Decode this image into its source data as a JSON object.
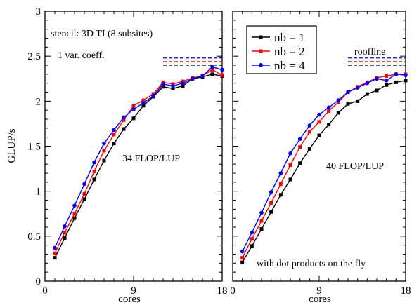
{
  "figure": {
    "ylabel": "GLUP/s",
    "xlabel": "cores",
    "legend": {
      "position": "top-left of right panel",
      "entries": [
        "nb = 1",
        "nb = 2",
        "nb = 4"
      ]
    },
    "colors": {
      "nb1": "#000000",
      "nb2": "#ff0000",
      "nb4": "#0000ff"
    }
  },
  "chart_data": [
    {
      "type": "line",
      "panel": "left",
      "xlabel": "cores",
      "ylabel": "GLUP/s",
      "xlim": [
        0,
        18
      ],
      "ylim": [
        0,
        3
      ],
      "xticks": [
        "0",
        "9",
        "18"
      ],
      "yticks": [
        "0",
        "0.5",
        "1",
        "1.5",
        "2",
        "2.5",
        "3"
      ],
      "annotations": [
        "stencil: 3D TI (8 subsites)",
        "1 var. coeff.",
        "34 FLOP/LUP"
      ],
      "x": [
        1,
        2,
        3,
        4,
        5,
        6,
        7,
        8,
        9,
        10,
        11,
        12,
        13,
        14,
        15,
        16,
        17,
        18
      ],
      "series": [
        {
          "name": "nb = 1",
          "color": "#000000",
          "marker": "square",
          "values": [
            0.26,
            0.48,
            0.7,
            0.91,
            1.13,
            1.34,
            1.53,
            1.69,
            1.81,
            1.95,
            2.05,
            2.16,
            2.14,
            2.17,
            2.25,
            2.27,
            2.3,
            2.28
          ]
        },
        {
          "name": "nb = 2",
          "color": "#ff0000",
          "marker": "square",
          "values": [
            0.31,
            0.54,
            0.75,
            0.97,
            1.22,
            1.45,
            1.63,
            1.79,
            1.95,
            2.01,
            2.08,
            2.21,
            2.19,
            2.22,
            2.26,
            2.28,
            2.35,
            2.29
          ]
        },
        {
          "name": "nb = 4",
          "color": "#0000ff",
          "marker": "circle",
          "values": [
            0.37,
            0.61,
            0.84,
            1.08,
            1.32,
            1.53,
            1.68,
            1.82,
            1.91,
            1.98,
            2.06,
            2.19,
            2.17,
            2.2,
            2.25,
            2.28,
            2.38,
            2.35
          ]
        }
      ],
      "roofline": {
        "x": [
          12,
          18
        ],
        "values": {
          "nb = 4": 2.48,
          "nb = 2": 2.44,
          "nb = 1": 2.4
        }
      }
    },
    {
      "type": "line",
      "panel": "right",
      "xlabel": "cores",
      "xlim": [
        0,
        18
      ],
      "ylim": [
        0,
        3
      ],
      "xticks": [
        "0",
        "9",
        "18"
      ],
      "annotations": [
        "roofline",
        "40 FLOP/LUP",
        "with dot products on the fly"
      ],
      "x": [
        1,
        2,
        3,
        4,
        5,
        6,
        7,
        8,
        9,
        10,
        11,
        12,
        13,
        14,
        15,
        16,
        17,
        18
      ],
      "series": [
        {
          "name": "nb = 1",
          "color": "#000000",
          "marker": "square",
          "values": [
            0.21,
            0.39,
            0.58,
            0.77,
            0.96,
            1.13,
            1.31,
            1.47,
            1.62,
            1.74,
            1.87,
            1.97,
            2.0,
            2.08,
            2.12,
            2.18,
            2.21,
            2.23
          ]
        },
        {
          "name": "nb = 2",
          "color": "#ff0000",
          "marker": "square",
          "values": [
            0.26,
            0.47,
            0.67,
            0.87,
            1.08,
            1.29,
            1.49,
            1.66,
            1.77,
            1.89,
            1.99,
            2.1,
            2.16,
            2.21,
            2.26,
            2.28,
            2.3,
            2.3
          ]
        },
        {
          "name": "nb = 4",
          "color": "#0000ff",
          "marker": "circle",
          "values": [
            0.33,
            0.54,
            0.76,
            0.99,
            1.2,
            1.42,
            1.58,
            1.73,
            1.85,
            1.93,
            2.01,
            2.1,
            2.15,
            2.2,
            2.25,
            2.23,
            2.3,
            2.29
          ]
        }
      ],
      "roofline": {
        "x": [
          12,
          18
        ],
        "values": {
          "nb = 4": 2.48,
          "nb = 2": 2.44,
          "nb = 1": 2.4
        }
      }
    }
  ]
}
